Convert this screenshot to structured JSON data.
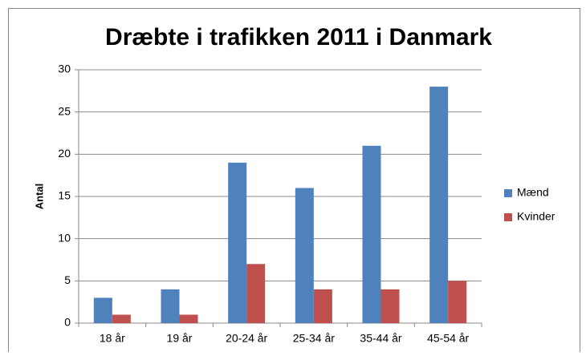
{
  "chart_data": {
    "type": "bar",
    "title": "Dræbte i trafikken 2011 i Danmark",
    "y_label": "Antal",
    "categories": [
      "18 år",
      "19 år",
      "20-24 år",
      "25-34 år",
      "35-44 år",
      "45-54 år"
    ],
    "series": [
      {
        "name": "Mænd",
        "color": "#4f81bd",
        "values": [
          3,
          4,
          19,
          16,
          21,
          28
        ]
      },
      {
        "name": "Kvinder",
        "color": "#c0504d",
        "values": [
          1,
          1,
          7,
          4,
          4,
          5
        ]
      }
    ],
    "ylim": [
      0,
      30
    ],
    "yticks": [
      0,
      5,
      10,
      15,
      20,
      25,
      30
    ],
    "grid": true,
    "legend": "right"
  }
}
